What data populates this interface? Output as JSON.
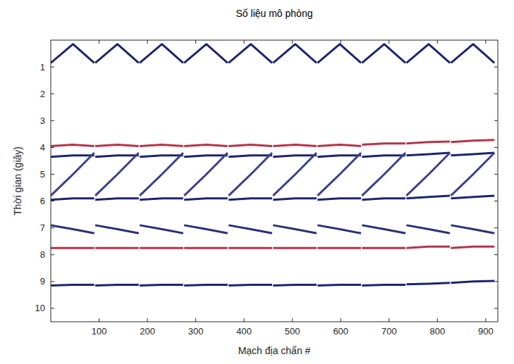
{
  "chart_data": {
    "type": "line",
    "title": "Số liệu mô phỏng",
    "x_label": "Mạch địa chấn #",
    "y_label": "Thời gian (giây)",
    "x": [
      0,
      46,
      90,
      91,
      92,
      138,
      182,
      183,
      184,
      230,
      274,
      275,
      276,
      322,
      366,
      367,
      368,
      414,
      458,
      459,
      460,
      506,
      550,
      551,
      552,
      598,
      642,
      643,
      644,
      690,
      734,
      735,
      736,
      782,
      826,
      827,
      828,
      874,
      918,
      919
    ],
    "series": [
      {
        "color": "#1c2470",
        "values": [
          0.85,
          0.15,
          0.85,
          null,
          0.85,
          0.15,
          0.85,
          null,
          0.85,
          0.15,
          0.85,
          null,
          0.85,
          0.15,
          0.85,
          null,
          0.85,
          0.15,
          0.85,
          null,
          0.85,
          0.15,
          0.85,
          null,
          0.85,
          0.15,
          0.85,
          null,
          0.85,
          0.15,
          0.85,
          null,
          0.85,
          0.15,
          0.85,
          null,
          0.85,
          0.15,
          0.85,
          null
        ]
      },
      {
        "color": "#b8324a",
        "values": [
          3.95,
          3.9,
          3.95,
          null,
          3.95,
          3.9,
          3.95,
          null,
          3.95,
          3.9,
          3.95,
          null,
          3.95,
          3.9,
          3.95,
          null,
          3.95,
          3.9,
          3.95,
          null,
          3.95,
          3.9,
          3.95,
          null,
          3.95,
          3.9,
          3.95,
          null,
          3.9,
          3.85,
          3.85,
          null,
          3.85,
          3.8,
          3.78,
          null,
          3.8,
          3.75,
          3.72,
          null
        ]
      },
      {
        "color": "#1c2470",
        "values": [
          4.35,
          4.3,
          4.3,
          null,
          4.35,
          4.3,
          4.3,
          null,
          4.35,
          4.3,
          4.3,
          null,
          4.35,
          4.3,
          4.3,
          null,
          4.35,
          4.3,
          4.3,
          null,
          4.35,
          4.3,
          4.3,
          null,
          4.35,
          4.3,
          4.3,
          null,
          4.35,
          4.3,
          4.3,
          null,
          4.3,
          4.25,
          4.2,
          null,
          4.3,
          4.25,
          4.2,
          null
        ]
      },
      {
        "color": "#3a3f8f",
        "values": [
          5.8,
          5.0,
          4.2,
          null,
          5.8,
          5.0,
          4.2,
          null,
          5.8,
          5.0,
          4.2,
          null,
          5.8,
          5.0,
          4.2,
          null,
          5.8,
          5.0,
          4.2,
          null,
          5.8,
          5.0,
          4.2,
          null,
          5.8,
          5.0,
          4.2,
          null,
          5.8,
          5.0,
          4.2,
          null,
          5.8,
          5.0,
          4.2,
          null,
          5.8,
          5.0,
          4.2,
          null
        ]
      },
      {
        "color": "#1c2470",
        "values": [
          5.95,
          5.9,
          5.9,
          null,
          5.95,
          5.9,
          5.9,
          null,
          5.95,
          5.9,
          5.9,
          null,
          5.95,
          5.9,
          5.9,
          null,
          5.95,
          5.9,
          5.9,
          null,
          5.95,
          5.9,
          5.9,
          null,
          5.95,
          5.9,
          5.9,
          null,
          5.95,
          5.9,
          5.9,
          null,
          5.9,
          5.85,
          5.8,
          null,
          5.9,
          5.85,
          5.8,
          null
        ]
      },
      {
        "color": "#2a2f7a",
        "values": [
          6.9,
          7.05,
          7.2,
          null,
          6.9,
          7.05,
          7.2,
          null,
          6.9,
          7.05,
          7.2,
          null,
          6.9,
          7.05,
          7.2,
          null,
          6.9,
          7.05,
          7.2,
          null,
          6.9,
          7.05,
          7.2,
          null,
          6.9,
          7.05,
          7.2,
          null,
          6.9,
          7.05,
          7.2,
          null,
          6.9,
          7.05,
          7.2,
          null,
          6.9,
          7.05,
          7.2,
          null
        ]
      },
      {
        "color": "#b8324a",
        "values": [
          7.75,
          7.75,
          7.75,
          null,
          7.75,
          7.75,
          7.75,
          null,
          7.75,
          7.75,
          7.75,
          null,
          7.75,
          7.75,
          7.75,
          null,
          7.75,
          7.75,
          7.75,
          null,
          7.75,
          7.75,
          7.75,
          null,
          7.75,
          7.75,
          7.75,
          null,
          7.75,
          7.75,
          7.75,
          null,
          7.75,
          7.7,
          7.7,
          null,
          7.75,
          7.7,
          7.7,
          null
        ]
      },
      {
        "color": "#1c2470",
        "values": [
          9.15,
          9.12,
          9.12,
          null,
          9.15,
          9.12,
          9.12,
          null,
          9.15,
          9.12,
          9.12,
          null,
          9.15,
          9.12,
          9.12,
          null,
          9.15,
          9.12,
          9.12,
          null,
          9.15,
          9.12,
          9.12,
          null,
          9.15,
          9.12,
          9.12,
          null,
          9.15,
          9.12,
          9.12,
          null,
          9.1,
          9.08,
          9.05,
          null,
          9.05,
          9.0,
          8.98,
          null
        ]
      }
    ],
    "xlim": [
      0,
      925
    ],
    "xticks": [
      100,
      200,
      300,
      400,
      500,
      600,
      700,
      800,
      900
    ],
    "ylim": [
      10.5,
      0
    ],
    "yticks": [
      1,
      2,
      3,
      4,
      5,
      6,
      7,
      8,
      9,
      10
    ]
  }
}
